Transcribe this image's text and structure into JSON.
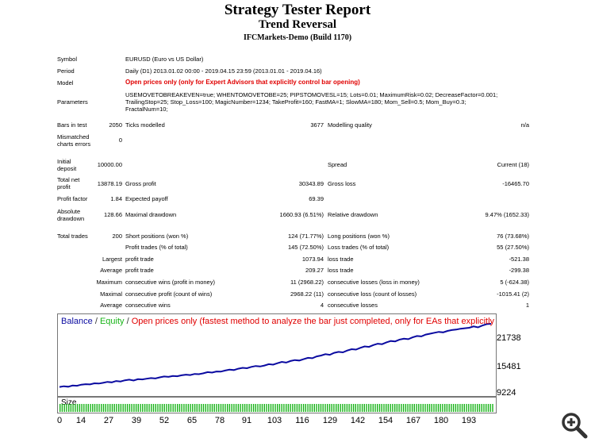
{
  "header": {
    "title": "Strategy Tester Report",
    "subtitle": "Trend Reversal",
    "server": "IFCMarkets-Demo (Build 1170)"
  },
  "info": {
    "symbol_label": "Symbol",
    "symbol_value": "EURUSD (Euro vs US Dollar)",
    "period_label": "Period",
    "period_value": "Daily (D1) 2013.01.02 00:00 - 2019.04.15 23:59 (2013.01.01 - 2019.04.16)",
    "model_label": "Model",
    "model_value": "Open prices only (only for Expert Advisors that explicitly control bar opening)",
    "params_label": "Parameters",
    "params_line1": "USEMOVETOBREAKEVEN=true; WHENTOMOVETOBE=25; PIPSTOMOVESL=15; Lots=0.01; MaximumRisk=0.02; DecreaseFactor=0.001;",
    "params_line2": "TrailingStop=25; Stop_Loss=100; MagicNumber=1234; TakeProfit=160; FastMA=1; SlowMA=180; Mom_Sell=0.5; Mom_Buy=0.3;",
    "params_line3": "FractalNum=10;"
  },
  "stats": {
    "bars_label": "Bars in test",
    "bars_value": "2050",
    "ticks_label": "Ticks modelled",
    "ticks_value": "3677",
    "quality_label": "Modelling quality",
    "quality_value": "n/a",
    "mismatch_label1": "Mismatched",
    "mismatch_label2": "charts errors",
    "mismatch_value": "0",
    "deposit_label1": "Initial",
    "deposit_label2": "deposit",
    "deposit_value": "10000.00",
    "spread_label": "Spread",
    "spread_value": "Current (18)",
    "netprofit_label1": "Total net",
    "netprofit_label2": "profit",
    "netprofit_value": "13878.19",
    "gross_profit_label": "Gross profit",
    "gross_profit_value": "30343.89",
    "gross_loss_label": "Gross loss",
    "gross_loss_value": "-16465.70",
    "pf_label": "Profit factor",
    "pf_value": "1.84",
    "payoff_label": "Expected payoff",
    "payoff_value": "69.39",
    "absdd_label1": "Absolute",
    "absdd_label2": "drawdown",
    "absdd_value": "128.66",
    "maxdd_label": "Maximal drawdown",
    "maxdd_value": "1660.93 (6.51%)",
    "reldd_label": "Relative drawdown",
    "reldd_value": "9.47% (1652.33)",
    "trades_label": "Total trades",
    "trades_value": "200",
    "short_label": "Short positions (won %)",
    "short_value": "124 (71.77%)",
    "long_label": "Long positions (won %)",
    "long_value": "76 (73.68%)",
    "ptrades_label": "Profit trades (% of total)",
    "ptrades_value": "145 (72.50%)",
    "ltrades_label": "Loss trades (% of total)",
    "ltrades_value": "55 (27.50%)",
    "largest_label": "Largest",
    "largest_profit_label": "profit trade",
    "largest_profit_value": "1073.94",
    "largest_loss_label": "loss trade",
    "largest_loss_value": "-521.38",
    "average_label": "Average",
    "average_profit_label": "profit trade",
    "average_profit_value": "209.27",
    "average_loss_label": "loss trade",
    "average_loss_value": "-299.38",
    "maximum_label": "Maximum",
    "max_wins_label": "consecutive wins (profit in money)",
    "max_wins_value": "11 (2968.22)",
    "max_losses_label": "consecutive losses (loss in money)",
    "max_losses_value": "5 (-624.38)",
    "maximal_label": "Maximal",
    "maximal_profit_label": "consecutive profit (count of wins)",
    "maximal_profit_value": "2968.22 (11)",
    "maximal_loss_label": "consecutive loss (count of losses)",
    "maximal_loss_value": "-1015.41 (2)",
    "avg2_label": "Average",
    "avg_wins_label": "consecutive wins",
    "avg_wins_value": "4",
    "avg_losses_label": "consecutive losses",
    "avg_losses_value": "1"
  },
  "chart_legend": {
    "balance": "Balance",
    "sep1": "/",
    "equity": "Equity",
    "sep2": "/",
    "text": "Open prices only (fastest method to analyze the bar just completed, only for EAs that explicitly control b"
  },
  "size_label": "Size",
  "colors": {
    "balance": "#0a0aa0",
    "equity": "#18b418",
    "model_text": "#e00000",
    "size_bars": "#18b418"
  },
  "chart_data": {
    "type": "line",
    "series": [
      {
        "name": "Balance",
        "values": [
          10000,
          10150,
          10050,
          10300,
          10250,
          10500,
          10600,
          10550,
          10800,
          10750,
          10900,
          11100,
          11000,
          11300,
          11200,
          11450,
          11600,
          11400,
          11700,
          11650,
          11800,
          11950,
          11850,
          12100,
          12300,
          12200,
          12400,
          12350,
          12550,
          12700,
          12600,
          12850,
          12800,
          13000,
          13250,
          13150,
          13400,
          13350,
          13600,
          13800,
          13700,
          14000,
          14200,
          14100,
          14400,
          14600,
          14500,
          14700,
          15000,
          14900,
          15200,
          15500,
          15350,
          15700,
          15900,
          15800,
          16100,
          16400,
          16300,
          16700,
          16900,
          17200,
          17050,
          17500,
          17700,
          17600,
          18000,
          18300,
          18200,
          18600,
          18900,
          18800,
          19200,
          19500,
          19400,
          19800,
          20100,
          20000,
          20400,
          20600,
          20500,
          20900,
          21200,
          21100,
          21500,
          21700,
          21900,
          22100,
          22000,
          22300,
          22500,
          22600,
          22800,
          22900,
          23000,
          23300,
          23100,
          23500,
          23800,
          23878
        ]
      }
    ],
    "x_ticks": [
      "0",
      "14",
      "27",
      "39",
      "52",
      "65",
      "78",
      "91",
      "103",
      "116",
      "129",
      "142",
      "154",
      "167",
      "180",
      "193"
    ],
    "y_ticks": [
      "21738",
      "15481",
      "9224"
    ],
    "ylim": [
      9224,
      23878
    ],
    "size_bars": "uniform trade-size bars across all trades"
  },
  "zoom_icon": "zoom-in-icon"
}
